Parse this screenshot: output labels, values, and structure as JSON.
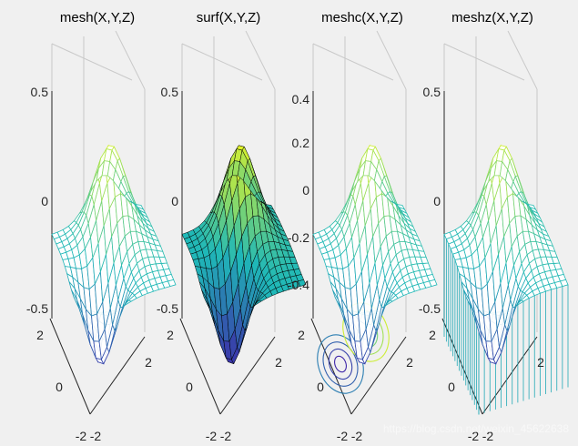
{
  "chart_data": [
    {
      "type": "surface-mesh",
      "function": "mesh",
      "title": "mesh(X,Y,Z)",
      "z_ticks": [
        "0.5",
        "0",
        "-0.5"
      ],
      "y_ticks": [
        "2",
        "0",
        "-2"
      ],
      "x_ticks": [
        "2",
        "-2"
      ],
      "zlim": [
        -0.5,
        0.5
      ],
      "xlim": [
        -2,
        2
      ],
      "ylim": [
        -2,
        2
      ],
      "surface": {
        "peak": 0.43,
        "trough": -0.43
      },
      "contour": false,
      "curtain": false
    },
    {
      "type": "surface-filled",
      "function": "surf",
      "title": "surf(X,Y,Z)",
      "z_ticks": [
        "0.5",
        "0",
        "-0.5"
      ],
      "y_ticks": [
        "2",
        "0",
        "-2"
      ],
      "x_ticks": [
        "2",
        "-2"
      ],
      "zlim": [
        -0.5,
        0.5
      ],
      "xlim": [
        -2,
        2
      ],
      "ylim": [
        -2,
        2
      ],
      "surface": {
        "peak": 0.43,
        "trough": -0.43
      },
      "contour": false,
      "curtain": false
    },
    {
      "type": "surface-mesh-contour",
      "function": "meshc",
      "title": "meshc(X,Y,Z)",
      "z_ticks": [
        "0.4",
        "0.2",
        "0",
        "-0.2",
        "-0.4"
      ],
      "y_ticks": [
        "2",
        "0",
        "-2"
      ],
      "x_ticks": [
        "2",
        "-2"
      ],
      "zlim": [
        -0.5,
        0.5
      ],
      "xlim": [
        -2,
        2
      ],
      "ylim": [
        -2,
        2
      ],
      "surface": {
        "peak": 0.43,
        "trough": -0.43
      },
      "contour": true,
      "curtain": false
    },
    {
      "type": "surface-mesh-curtain",
      "function": "meshz",
      "title": "meshz(X,Y,Z)",
      "z_ticks": [
        "0.5",
        "0",
        "-0.5"
      ],
      "y_ticks": [
        "2",
        "0",
        "-2"
      ],
      "x_ticks": [
        "2",
        "-2"
      ],
      "zlim": [
        -0.5,
        0.5
      ],
      "xlim": [
        -2,
        2
      ],
      "ylim": [
        -2,
        2
      ],
      "surface": {
        "peak": 0.43,
        "trough": -0.43
      },
      "contour": false,
      "curtain": true
    }
  ],
  "watermark": "https://blog.csdn.net/weixin_45622638",
  "colors": {
    "background": "#f0f0f0",
    "axis": "#262626",
    "grid": "#c9c9c9",
    "parula_low": "#3e26a8",
    "parula_mid": "#1fb8b8",
    "parula_high": "#f9fb15"
  }
}
